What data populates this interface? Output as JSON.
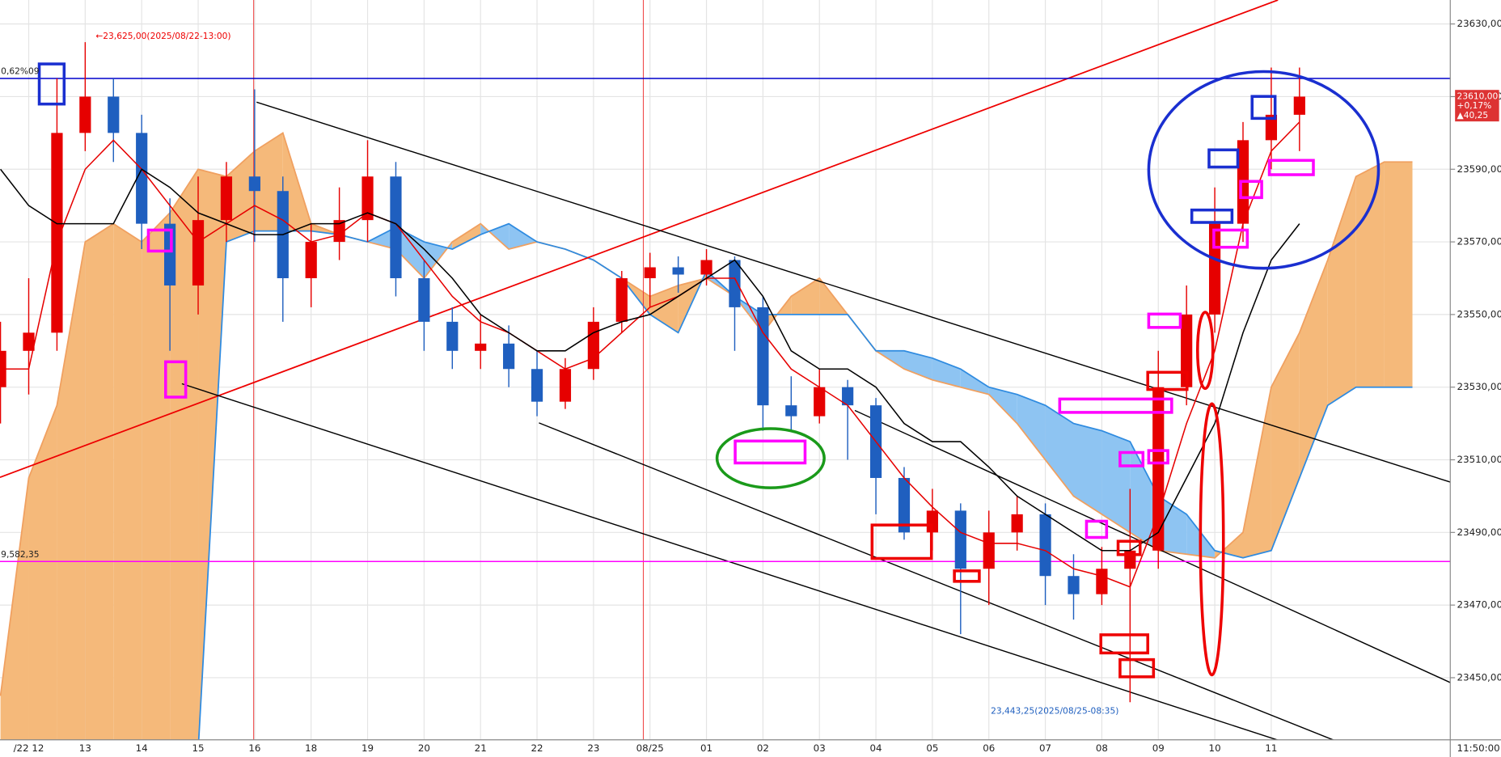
{
  "chart_data": {
    "type": "candlestick",
    "categories": [
      null,
      "/22 12",
      null,
      "13",
      null,
      "14",
      null,
      "15",
      null,
      "16",
      null,
      "18",
      null,
      "19",
      null,
      "20",
      null,
      "21",
      null,
      "22",
      null,
      "23",
      null,
      "08/25",
      null,
      "01",
      null,
      "02",
      null,
      "03",
      null,
      "04",
      null,
      "05",
      null,
      "06",
      null,
      "07",
      null,
      "08",
      null,
      "09",
      null,
      "10",
      null,
      "11",
      null
    ],
    "open": [
      23530,
      23540,
      23545,
      23600,
      23610,
      23600,
      23575,
      23558,
      23576,
      23588,
      23584,
      23560,
      23570,
      23576,
      23588,
      23560,
      23548,
      23540,
      23542,
      23535,
      23526,
      23535,
      23548,
      23560,
      23563,
      23561,
      23565,
      23552,
      23525,
      23522,
      23530,
      23525,
      23505,
      23490,
      23496,
      23480,
      23490,
      23495,
      23478,
      23473,
      23480,
      23485,
      23530,
      23550,
      23575,
      23598,
      23605
    ],
    "high": [
      23548,
      23560,
      23615,
      23625,
      23615,
      23605,
      23582,
      23588,
      23592,
      23612,
      23588,
      23575,
      23585,
      23598,
      23592,
      23565,
      23552,
      23550,
      23547,
      23540,
      23538,
      23552,
      23562,
      23567,
      23566,
      23568,
      23566,
      23555,
      23533,
      23535,
      23532,
      23527,
      23508,
      23502,
      23498,
      23496,
      23500,
      23498,
      23484,
      23486,
      23502,
      23540,
      23558,
      23585,
      23603,
      23618,
      23618
    ],
    "low": [
      23520,
      23528,
      23540,
      23595,
      23592,
      23568,
      23540,
      23550,
      23570,
      23570,
      23548,
      23552,
      23565,
      23570,
      23555,
      23540,
      23535,
      23535,
      23530,
      23522,
      23524,
      23532,
      23545,
      23552,
      23556,
      23558,
      23540,
      23518,
      23518,
      23520,
      23510,
      23495,
      23488,
      23485,
      23462,
      23470,
      23485,
      23470,
      23466,
      23470,
      23443.25,
      23480,
      23525,
      23545,
      23570,
      23590,
      23595
    ],
    "close": [
      23540,
      23545,
      23600,
      23610,
      23600,
      23575,
      23558,
      23576,
      23588,
      23584,
      23560,
      23570,
      23576,
      23588,
      23560,
      23548,
      23540,
      23542,
      23535,
      23526,
      23535,
      23548,
      23560,
      23563,
      23561,
      23565,
      23552,
      23525,
      23522,
      23530,
      23525,
      23505,
      23490,
      23496,
      23480,
      23490,
      23495,
      23478,
      23473,
      23480,
      23485,
      23530,
      23550,
      23575,
      23598,
      23605,
      23610
    ],
    "up_color": "#e60000",
    "down_color": "#1f5fbf",
    "series": [
      {
        "name": "tenkan",
        "color": "#e60000",
        "values": [
          23535,
          23535,
          23570,
          23590,
          23598,
          23590,
          23580,
          23570,
          23575,
          23580,
          23576,
          23570,
          23572,
          23578,
          23575,
          23565,
          23555,
          23548,
          23545,
          23540,
          23535,
          23538,
          23545,
          23552,
          23555,
          23560,
          23560,
          23545,
          23535,
          23530,
          23525,
          23515,
          23505,
          23497,
          23490,
          23487,
          23487,
          23485,
          23480,
          23478,
          23475,
          23495,
          23520,
          23540,
          23575,
          23595,
          23603
        ]
      },
      {
        "name": "kijun",
        "color": "#000000",
        "values": [
          23590,
          23580,
          23575,
          23575,
          23575,
          23590,
          23585,
          23578,
          23575,
          23572,
          23572,
          23575,
          23575,
          23578,
          23575,
          23568,
          23560,
          23550,
          23545,
          23540,
          23540,
          23545,
          23548,
          23550,
          23555,
          23560,
          23565,
          23555,
          23540,
          23535,
          23535,
          23530,
          23520,
          23515,
          23515,
          23508,
          23500,
          23495,
          23490,
          23485,
          23485,
          23490,
          23505,
          23520,
          23545,
          23565,
          23575
        ]
      }
    ],
    "cloud": {
      "span_a": [
        23445,
        23505,
        23525,
        23570,
        23575,
        23570,
        23578,
        23590,
        23588,
        23595,
        23600,
        23575,
        23572,
        23570,
        23568,
        23560,
        23570,
        23575,
        23568,
        23570,
        23568,
        23565,
        23560,
        23555,
        23558,
        23560,
        23555,
        23545,
        23555,
        23560,
        23550,
        23540,
        23535,
        23532,
        23530,
        23528,
        23520,
        23510,
        23500,
        23495,
        23490,
        23485,
        23484,
        23483,
        23490,
        23530,
        23545,
        23565,
        23588,
        23592,
        23592
      ],
      "span_b": [
        23420,
        23420,
        23420,
        23420,
        23420,
        23420,
        23420,
        23430,
        23570,
        23573,
        23573,
        23573,
        23572,
        23570,
        23574,
        23570,
        23568,
        23572,
        23575,
        23570,
        23568,
        23565,
        23560,
        23550,
        23545,
        23562,
        23555,
        23550,
        23550,
        23550,
        23550,
        23540,
        23540,
        23538,
        23535,
        23530,
        23528,
        23525,
        23520,
        23518,
        23515,
        23500,
        23495,
        23485,
        23483,
        23485,
        23505,
        23525,
        23530,
        23530,
        23530
      ],
      "a_color": "#f5b97a",
      "b_color": "#8ec4f2",
      "a_line": "#f0a060",
      "b_line": "#2f8be0"
    },
    "hlines": [
      {
        "value": 23615,
        "color": "#0000cc"
      },
      {
        "value": 23482,
        "color": "#ff00ff"
      }
    ],
    "ylim": [
      23432.9,
      23636.6
    ],
    "yticks": [
      {
        "value": 23450,
        "label": "23450,00"
      },
      {
        "value": 23470,
        "label": "23470,00"
      },
      {
        "value": 23490,
        "label": "23490,00"
      },
      {
        "value": 23510,
        "label": "23510,00"
      },
      {
        "value": 23530,
        "label": "23530,00"
      },
      {
        "value": 23550,
        "label": "23550,00"
      },
      {
        "value": 23570,
        "label": "23570,00"
      },
      {
        "value": 23590,
        "label": "23590,00"
      },
      {
        "value": 23610,
        "label": "23610,00"
      },
      {
        "value": 23630,
        "label": "23630,00"
      }
    ],
    "grid": true,
    "price_tag": [
      "23610,00",
      "+0,17%",
      "▲40,25"
    ],
    "annotations": [
      "←23,625,00(2025/08/22-13:00)",
      "23,443,25(2025/08/25-08:35)"
    ],
    "left_labels": [
      "0,62%09",
      "9,582,35"
    ],
    "time_label": "11:50:00"
  }
}
